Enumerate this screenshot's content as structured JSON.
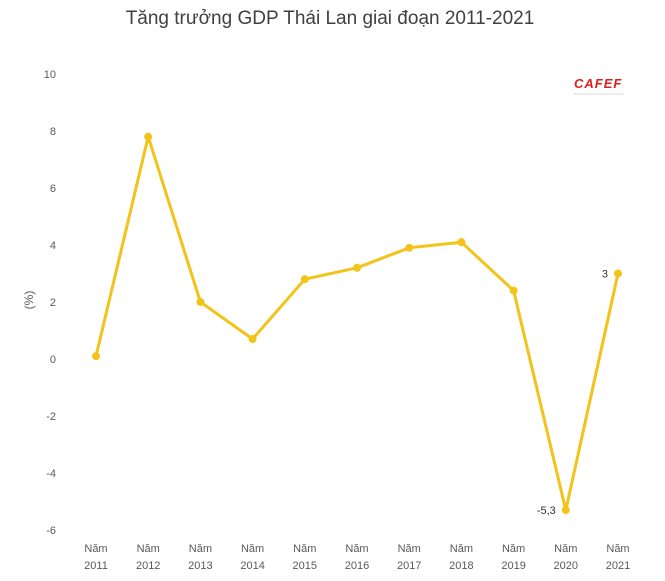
{
  "chart_data": {
    "type": "line",
    "title": "Tăng trưởng GDP Thái Lan giai đoạn 2011-2021",
    "ylabel": "(%)",
    "xlabel": "",
    "categories": [
      "Năm 2011",
      "Năm 2012",
      "Năm 2013",
      "Năm 2014",
      "Năm 2015",
      "Năm 2016",
      "Năm 2017",
      "Năm 2018",
      "Năm 2019",
      "Năm 2020",
      "Năm 2021"
    ],
    "category_lines": [
      [
        "Năm",
        "2011"
      ],
      [
        "Năm",
        "2012"
      ],
      [
        "Năm",
        "2013"
      ],
      [
        "Năm",
        "2014"
      ],
      [
        "Năm",
        "2015"
      ],
      [
        "Năm",
        "2016"
      ],
      [
        "Năm",
        "2017"
      ],
      [
        "Năm",
        "2018"
      ],
      [
        "Năm",
        "2019"
      ],
      [
        "Năm",
        "2020"
      ],
      [
        "Năm",
        "2021"
      ]
    ],
    "series": [
      {
        "values": [
          0.1,
          7.8,
          2.0,
          0.7,
          2.8,
          3.2,
          3.9,
          4.1,
          2.4,
          -5.3,
          3.0
        ]
      }
    ],
    "data_labels": [
      {
        "index": 9,
        "text": "-5,3"
      },
      {
        "index": 10,
        "text": "3"
      }
    ],
    "ylim": [
      -6,
      10
    ],
    "yticks": [
      -6,
      -4,
      -2,
      0,
      2,
      4,
      6,
      8,
      10
    ],
    "grid": false,
    "legend": "none",
    "line_color": "#F2C318"
  },
  "watermark": {
    "text": "CAFEF",
    "color": "#d9201f"
  }
}
